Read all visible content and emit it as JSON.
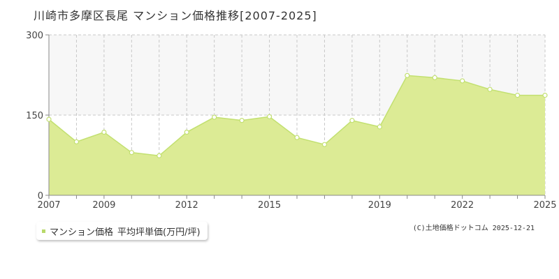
{
  "title": "川崎市多摩区長尾 マンション価格推移[2007-2025]",
  "legend": {
    "series_label": "マンション価格",
    "unit_label": "平均坪単価(万円/坪)"
  },
  "credit": "(C)土地価格ドットコム 2025-12-21",
  "colors": {
    "area_fill": "#dceb95",
    "line": "#c2e070",
    "point_fill": "#ffffff",
    "grid": "#c8c8c8",
    "axis": "#888888",
    "band": "#f7f7f7"
  },
  "chart_data": {
    "type": "area",
    "title": "川崎市多摩区長尾 マンション価格推移[2007-2025]",
    "xlabel": "",
    "ylabel": "",
    "ylim": [
      0,
      300
    ],
    "yticks": [
      0,
      150,
      300
    ],
    "xlim": [
      2007,
      2025
    ],
    "xtick_labels": [
      2007,
      2009,
      2012,
      2015,
      2019,
      2022,
      2025
    ],
    "grid": true,
    "legend_position": "bottom-left",
    "series": [
      {
        "name": "マンション価格",
        "x": [
          2007,
          2008,
          2009,
          2010,
          2011,
          2012,
          2013,
          2014,
          2015,
          2016,
          2017,
          2018,
          2019,
          2020,
          2021,
          2022,
          2023,
          2024,
          2025
        ],
        "values": [
          142,
          100,
          118,
          80,
          74,
          118,
          146,
          140,
          147,
          108,
          95,
          140,
          128,
          224,
          220,
          214,
          198,
          187,
          187
        ]
      }
    ]
  }
}
